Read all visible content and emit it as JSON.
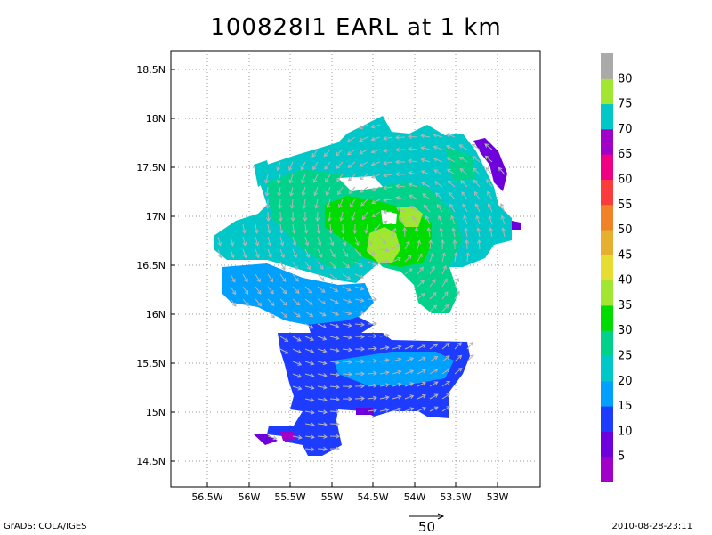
{
  "title": "100828I1 EARL at 1 km",
  "credit": "GrADS: COLA/IGES",
  "timestamp": "2010-08-28-23:11",
  "vector_reference": {
    "label": "50"
  },
  "axes": {
    "lon_labels": [
      "56.5W",
      "56W",
      "55.5W",
      "55W",
      "54.5W",
      "54W",
      "53.5W",
      "53W"
    ],
    "lat_labels": [
      "14.5N",
      "15N",
      "15.5N",
      "16N",
      "16.5N",
      "17N",
      "17.5N",
      "18N",
      "18.5N"
    ]
  },
  "colorbar": {
    "labels": [
      "5",
      "10",
      "15",
      "20",
      "25",
      "30",
      "35",
      "40",
      "45",
      "50",
      "55",
      "60",
      "65",
      "70",
      "75",
      "80"
    ],
    "colors": [
      "#a000c8",
      "#6e00dc",
      "#1e3cff",
      "#00a0ff",
      "#00c8c8",
      "#00d28c",
      "#00dc00",
      "#a0e632",
      "#e6dc32",
      "#e6af2d",
      "#f08228",
      "#fa3c3c",
      "#f00082",
      "#a000c8",
      "#00c8c8",
      "#a0e632",
      "#aaaaaa"
    ]
  },
  "palette": {
    "purple": "#a000c8",
    "violet": "#6e00dc",
    "blue": "#1e3cff",
    "lightblue": "#00a0ff",
    "cyan": "#00c8c8",
    "seagreen": "#00d28c",
    "green": "#00dc00",
    "yellowgreen": "#a0e632"
  }
}
